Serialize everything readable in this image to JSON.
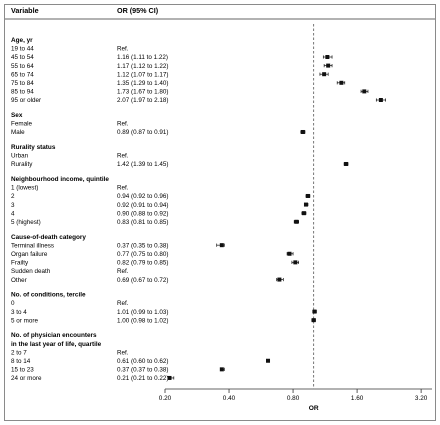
{
  "chart_data": {
    "type": "forest",
    "header": {
      "variable": "Variable",
      "or": "OR (95% CI)"
    },
    "xlabel": "OR",
    "x_scale": "log",
    "xlim": [
      0.2,
      3.6
    ],
    "x_ticks": [
      {
        "value": 0.2,
        "label": "0.20"
      },
      {
        "value": 0.4,
        "label": "0.40"
      },
      {
        "value": 0.8,
        "label": "0.80"
      },
      {
        "value": 1.6,
        "label": "1.60"
      },
      {
        "value": 3.2,
        "label": "3.20"
      }
    ],
    "reference_line": 1.0,
    "groups": [
      {
        "title": "Age, yr",
        "rows": [
          {
            "label": "19 to 44",
            "ci_text": "Ref."
          },
          {
            "label": "45 to 54",
            "ci_text": "1.16 (1.11 to 1.22)",
            "or": 1.16,
            "low": 1.11,
            "high": 1.22
          },
          {
            "label": "55 to 64",
            "ci_text": "1.17 (1.12 to 1.22)",
            "or": 1.17,
            "low": 1.12,
            "high": 1.22
          },
          {
            "label": "65 to 74",
            "ci_text": "1.12 (1.07 to 1.17)",
            "or": 1.12,
            "low": 1.07,
            "high": 1.17
          },
          {
            "label": "75 to 84",
            "ci_text": "1.35 (1.29 to 1.40)",
            "or": 1.35,
            "low": 1.29,
            "high": 1.4
          },
          {
            "label": "85 to 94",
            "ci_text": "1.73 (1.67 to 1.80)",
            "or": 1.73,
            "low": 1.67,
            "high": 1.8
          },
          {
            "label": "95 or older",
            "ci_text": "2.07 (1.97 to 2.18)",
            "or": 2.07,
            "low": 1.97,
            "high": 2.18
          }
        ]
      },
      {
        "title": "Sex",
        "rows": [
          {
            "label": "Female",
            "ci_text": "Ref."
          },
          {
            "label": "Male",
            "ci_text": "0.89 (0.87 to 0.91)",
            "or": 0.89,
            "low": 0.87,
            "high": 0.91
          }
        ]
      },
      {
        "title": "Rurality status",
        "rows": [
          {
            "label": "Urban",
            "ci_text": "Ref."
          },
          {
            "label": "Rurality",
            "ci_text": "1.42 (1.39 to 1.45)",
            "or": 1.42,
            "low": 1.39,
            "high": 1.45
          }
        ]
      },
      {
        "title": "Neighbourhood income, quintile",
        "rows": [
          {
            "label": "1 (lowest)",
            "ci_text": "Ref."
          },
          {
            "label": "2",
            "ci_text": "0.94 (0.92 to 0.96)",
            "or": 0.94,
            "low": 0.92,
            "high": 0.96
          },
          {
            "label": "3",
            "ci_text": "0.92 (0.91 to 0.94)",
            "or": 0.92,
            "low": 0.91,
            "high": 0.94
          },
          {
            "label": "4",
            "ci_text": "0.90 (0.88 to 0.92)",
            "or": 0.9,
            "low": 0.88,
            "high": 0.92
          },
          {
            "label": "5 (highest)",
            "ci_text": "0.83 (0.81 to 0.85)",
            "or": 0.83,
            "low": 0.81,
            "high": 0.85
          }
        ]
      },
      {
        "title": "Cause-of-death category",
        "rows": [
          {
            "label": "Terminal illness",
            "ci_text": "0.37 (0.35 to 0.38)",
            "or": 0.37,
            "low": 0.35,
            "high": 0.38
          },
          {
            "label": "Organ failure",
            "ci_text": "0.77 (0.75 to 0.80)",
            "or": 0.77,
            "low": 0.75,
            "high": 0.8
          },
          {
            "label": "Frailty",
            "ci_text": "0.82 (0.79 to 0.85)",
            "or": 0.82,
            "low": 0.79,
            "high": 0.85
          },
          {
            "label": "Sudden death",
            "ci_text": "Ref."
          },
          {
            "label": "Other",
            "ci_text": "0.69 (0.67 to 0.72)",
            "or": 0.69,
            "low": 0.67,
            "high": 0.72
          }
        ]
      },
      {
        "title": "No. of conditions, tercile",
        "rows": [
          {
            "label": "0",
            "ci_text": "Ref."
          },
          {
            "label": "3 to 4",
            "ci_text": "1.01 (0.99 to 1.03)",
            "or": 1.01,
            "low": 0.99,
            "high": 1.03
          },
          {
            "label": "5 or more",
            "ci_text": "1.00 (0.98 to 1.02)",
            "or": 1.0,
            "low": 0.98,
            "high": 1.02
          }
        ]
      },
      {
        "title": "No. of physician encounters in the last year of life, quartile",
        "title_lines": [
          "No. of physician encounters",
          "in the last year of life, quartile"
        ],
        "rows": [
          {
            "label": "2 to 7",
            "ci_text": "Ref."
          },
          {
            "label": "8 to 14",
            "ci_text": "0.61 (0.60 to 0.62)",
            "or": 0.61,
            "low": 0.6,
            "high": 0.62
          },
          {
            "label": "15 to 23",
            "ci_text": "0.37 (0.37 to 0.38)",
            "or": 0.37,
            "low": 0.37,
            "high": 0.38
          },
          {
            "label": "24 or more",
            "ci_text": "0.21 (0.21 to 0.22)",
            "or": 0.21,
            "low": 0.21,
            "high": 0.22
          }
        ]
      }
    ]
  }
}
